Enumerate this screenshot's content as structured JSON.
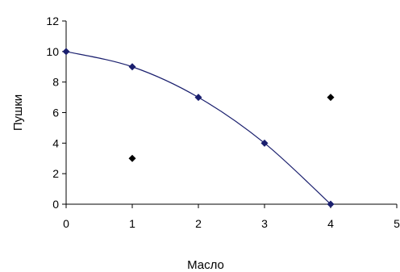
{
  "chart_data": {
    "type": "scatter",
    "xlabel": "Масло",
    "ylabel": "Пушки",
    "xlim": [
      0,
      5
    ],
    "ylim": [
      0,
      12
    ],
    "x_ticks": [
      "0",
      "1",
      "2",
      "3",
      "4",
      "5"
    ],
    "y_ticks": [
      "0",
      "2",
      "4",
      "6",
      "8",
      "10",
      "12"
    ],
    "grid": false,
    "legend": "none",
    "series": [
      {
        "kind": "curve",
        "color": "#1a1f6e",
        "marker_color": "#1a1f6e",
        "points": [
          [
            0,
            10
          ],
          [
            1,
            9
          ],
          [
            2,
            7
          ],
          [
            3,
            4
          ],
          [
            4,
            0
          ]
        ]
      },
      {
        "kind": "points",
        "color": "#000000",
        "marker_color": "#000000",
        "points": [
          [
            1,
            3
          ],
          [
            4,
            7
          ]
        ]
      }
    ]
  }
}
